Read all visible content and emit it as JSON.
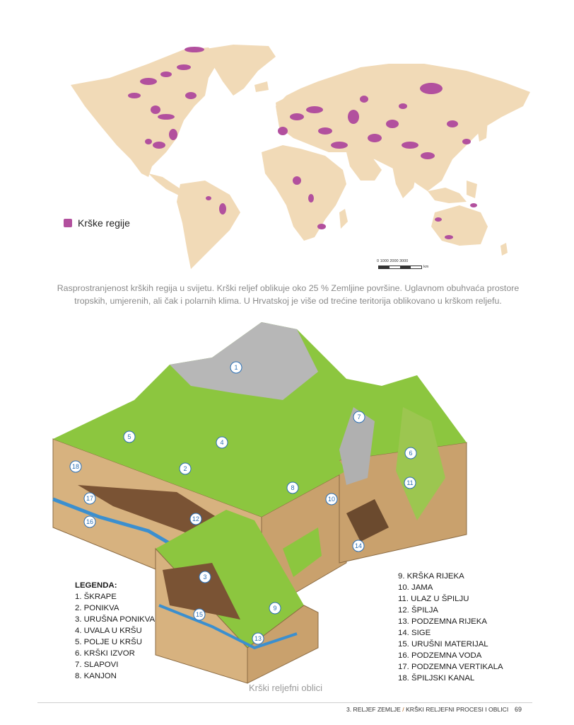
{
  "map": {
    "legend_label": "Krške regije",
    "legend_color": "#b2509e",
    "land_color": "#f1dab7",
    "scale_ticks": "0   1000  2000  3000",
    "scale_unit": "km"
  },
  "caption": "Rasprostranjenost krških regija u svijetu. Krški reljef oblikuje oko 25 % Zemljine površine. Uglavnom obuhvaća prostore tropskih, umjerenih, ali čak i polarnih klima. U Hrvatskoj je više od trećine teritorija oblikovano u krškom reljefu.",
  "illustration": {
    "markers": [
      "1",
      "2",
      "3",
      "4",
      "5",
      "6",
      "7",
      "8",
      "9",
      "10",
      "11",
      "12",
      "13",
      "14",
      "15",
      "16",
      "17",
      "18"
    ],
    "caption": "Krški reljefni oblici"
  },
  "legend": {
    "title": "LEGENDA:",
    "left": [
      "1. ŠKRAPE",
      "2. PONIKVA",
      "3. URUŠNA PONIKVA",
      "4. UVALA U KRŠU",
      "5. POLJE U KRŠU",
      "6. KRŠKI IZVOR",
      "7. SLAPOVI",
      "8. KANJON"
    ],
    "right": [
      "9. KRŠKA RIJEKA",
      "10. JAMA",
      "11. ULAZ U ŠPILJU",
      "12. ŠPILJA",
      "13. PODZEMNA RIJEKA",
      "14. SIGE",
      "15. URUŠNI MATERIJAL",
      "16. PODZEMNA VODA",
      "17. PODZEMNA VERTIKALA",
      "18. ŠPILJSKI KANAL"
    ]
  },
  "footer": {
    "chapter": "3. RELJEF ZEMLJE",
    "separator": "/",
    "section": "KRŠKI RELJEFNI PROCESI I OBLICI",
    "page": "69"
  }
}
